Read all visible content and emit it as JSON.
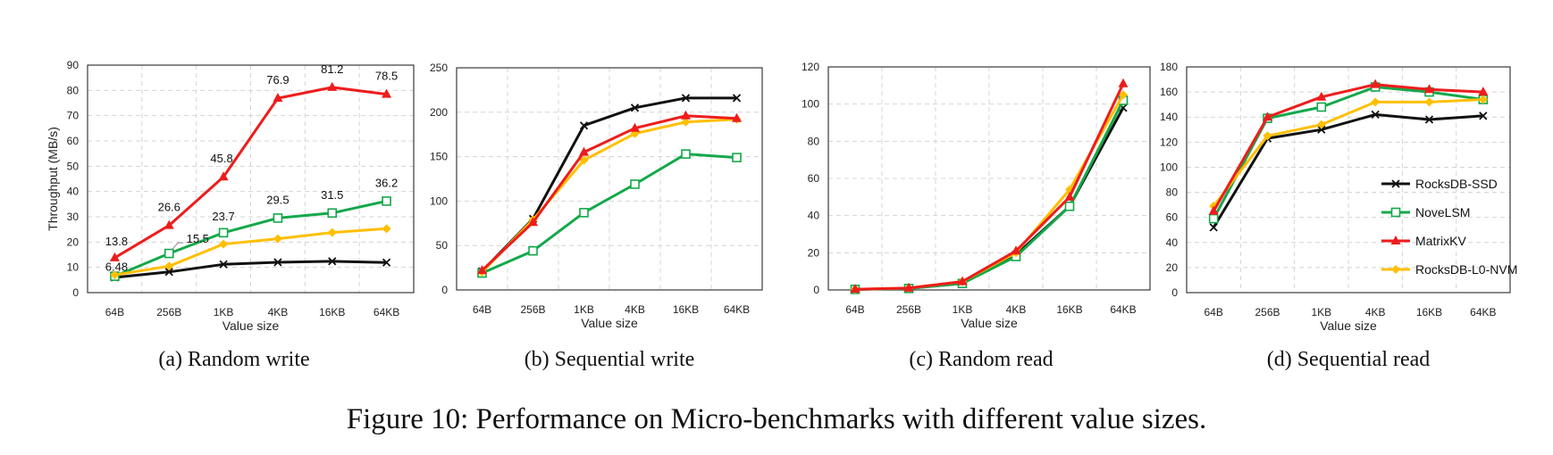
{
  "figure_caption": "Figure 10: Performance on Micro-benchmarks with different value sizes.",
  "colors": {
    "RocksDB-SSD": "#111111",
    "NoveLSM": "#13a84a",
    "MatrixKV": "#ee1c1c",
    "RocksDB-L0-NVM": "#ffbf00"
  },
  "legend": {
    "placement": "inside panel (d), lower-right",
    "entries": [
      "RocksDB-SSD",
      "NoveLSM",
      "MatrixKV",
      "RocksDB-L0-NVM"
    ]
  },
  "chart_data": [
    {
      "id": "a",
      "type": "line",
      "caption_prefix": "(a)",
      "caption": "Random write",
      "categories": [
        "64B",
        "256B",
        "1KB",
        "4KB",
        "16KB",
        "64KB"
      ],
      "xlabel": "Value size",
      "ylabel": "Throughput (MB/s)",
      "ylim": [
        0,
        90
      ],
      "yticks": [
        0,
        10,
        20,
        30,
        40,
        50,
        60,
        70,
        80,
        90
      ],
      "grid": true,
      "series": [
        {
          "name": "RocksDB-SSD",
          "values": [
            6.0,
            8.2,
            11.2,
            12.0,
            12.4,
            11.9
          ]
        },
        {
          "name": "NoveLSM",
          "values": [
            6.48,
            15.5,
            23.7,
            29.5,
            31.5,
            36.2
          ]
        },
        {
          "name": "MatrixKV",
          "values": [
            13.8,
            26.6,
            45.8,
            76.9,
            81.2,
            78.5
          ]
        },
        {
          "name": "RocksDB-L0-NVM",
          "values": [
            7.0,
            10.5,
            19.2,
            21.3,
            23.8,
            25.3
          ]
        }
      ],
      "data_labels": [
        {
          "text": "13.8",
          "series": "MatrixKV",
          "index": 0
        },
        {
          "text": "26.6",
          "series": "MatrixKV",
          "index": 1
        },
        {
          "text": "45.8",
          "series": "MatrixKV",
          "index": 2
        },
        {
          "text": "76.9",
          "series": "MatrixKV",
          "index": 3
        },
        {
          "text": "81.2",
          "series": "MatrixKV",
          "index": 4
        },
        {
          "text": "78.5",
          "series": "MatrixKV",
          "index": 5
        },
        {
          "text": "6.48",
          "series": "NoveLSM",
          "index": 0
        },
        {
          "text": "15.5",
          "series": "NoveLSM",
          "index": 1
        },
        {
          "text": "23.7",
          "series": "NoveLSM",
          "index": 2
        },
        {
          "text": "29.5",
          "series": "NoveLSM",
          "index": 3
        },
        {
          "text": "31.5",
          "series": "NoveLSM",
          "index": 4
        },
        {
          "text": "36.2",
          "series": "NoveLSM",
          "index": 5
        }
      ]
    },
    {
      "id": "b",
      "type": "line",
      "caption_prefix": "(b)",
      "caption": "Sequential write",
      "categories": [
        "64B",
        "256B",
        "1KB",
        "4KB",
        "16KB",
        "64KB"
      ],
      "xlabel": "Value size",
      "ylabel": "",
      "ylim": [
        0,
        250
      ],
      "yticks": [
        0,
        50,
        100,
        150,
        200,
        250
      ],
      "grid": true,
      "series": [
        {
          "name": "RocksDB-SSD",
          "values": [
            21,
            80,
            185,
            205,
            216,
            216
          ]
        },
        {
          "name": "NoveLSM",
          "values": [
            19,
            44,
            87,
            119,
            153,
            149
          ]
        },
        {
          "name": "MatrixKV",
          "values": [
            22,
            76,
            155,
            182,
            196,
            193
          ]
        },
        {
          "name": "RocksDB-L0-NVM",
          "values": [
            20,
            79,
            146,
            176,
            189,
            192
          ]
        }
      ],
      "data_labels": []
    },
    {
      "id": "c",
      "type": "line",
      "caption_prefix": "(c)",
      "caption": "Random read",
      "categories": [
        "64B",
        "256B",
        "1KB",
        "4KB",
        "16KB",
        "64KB"
      ],
      "xlabel": "Value size",
      "ylabel": "",
      "ylim": [
        0,
        120
      ],
      "yticks": [
        0,
        20,
        40,
        60,
        80,
        100,
        120
      ],
      "grid": true,
      "series": [
        {
          "name": "RocksDB-SSD",
          "values": [
            0.3,
            0.8,
            3.5,
            19,
            45,
            98
          ]
        },
        {
          "name": "NoveLSM",
          "values": [
            0.3,
            0.8,
            3.5,
            18,
            45,
            102
          ]
        },
        {
          "name": "MatrixKV",
          "values": [
            0.4,
            1.0,
            4.5,
            21,
            50,
            111
          ]
        },
        {
          "name": "RocksDB-L0-NVM",
          "values": [
            0.4,
            1.0,
            4.5,
            20,
            54,
            105
          ]
        }
      ],
      "data_labels": []
    },
    {
      "id": "d",
      "type": "line",
      "caption_prefix": "(d)",
      "caption": "Sequential read",
      "categories": [
        "64B",
        "256B",
        "1KB",
        "4KB",
        "16KB",
        "64KB"
      ],
      "xlabel": "Value size",
      "ylabel": "",
      "ylim": [
        0,
        180
      ],
      "yticks": [
        0,
        20,
        40,
        60,
        80,
        100,
        120,
        140,
        160,
        180
      ],
      "grid": true,
      "series": [
        {
          "name": "RocksDB-SSD",
          "values": [
            52,
            123,
            130,
            142,
            138,
            141
          ]
        },
        {
          "name": "NoveLSM",
          "values": [
            59,
            139,
            148,
            164,
            160,
            154
          ]
        },
        {
          "name": "MatrixKV",
          "values": [
            65,
            140,
            156,
            166,
            162,
            160
          ]
        },
        {
          "name": "RocksDB-L0-NVM",
          "values": [
            69,
            125,
            134,
            152,
            152,
            154
          ]
        }
      ],
      "data_labels": []
    }
  ]
}
